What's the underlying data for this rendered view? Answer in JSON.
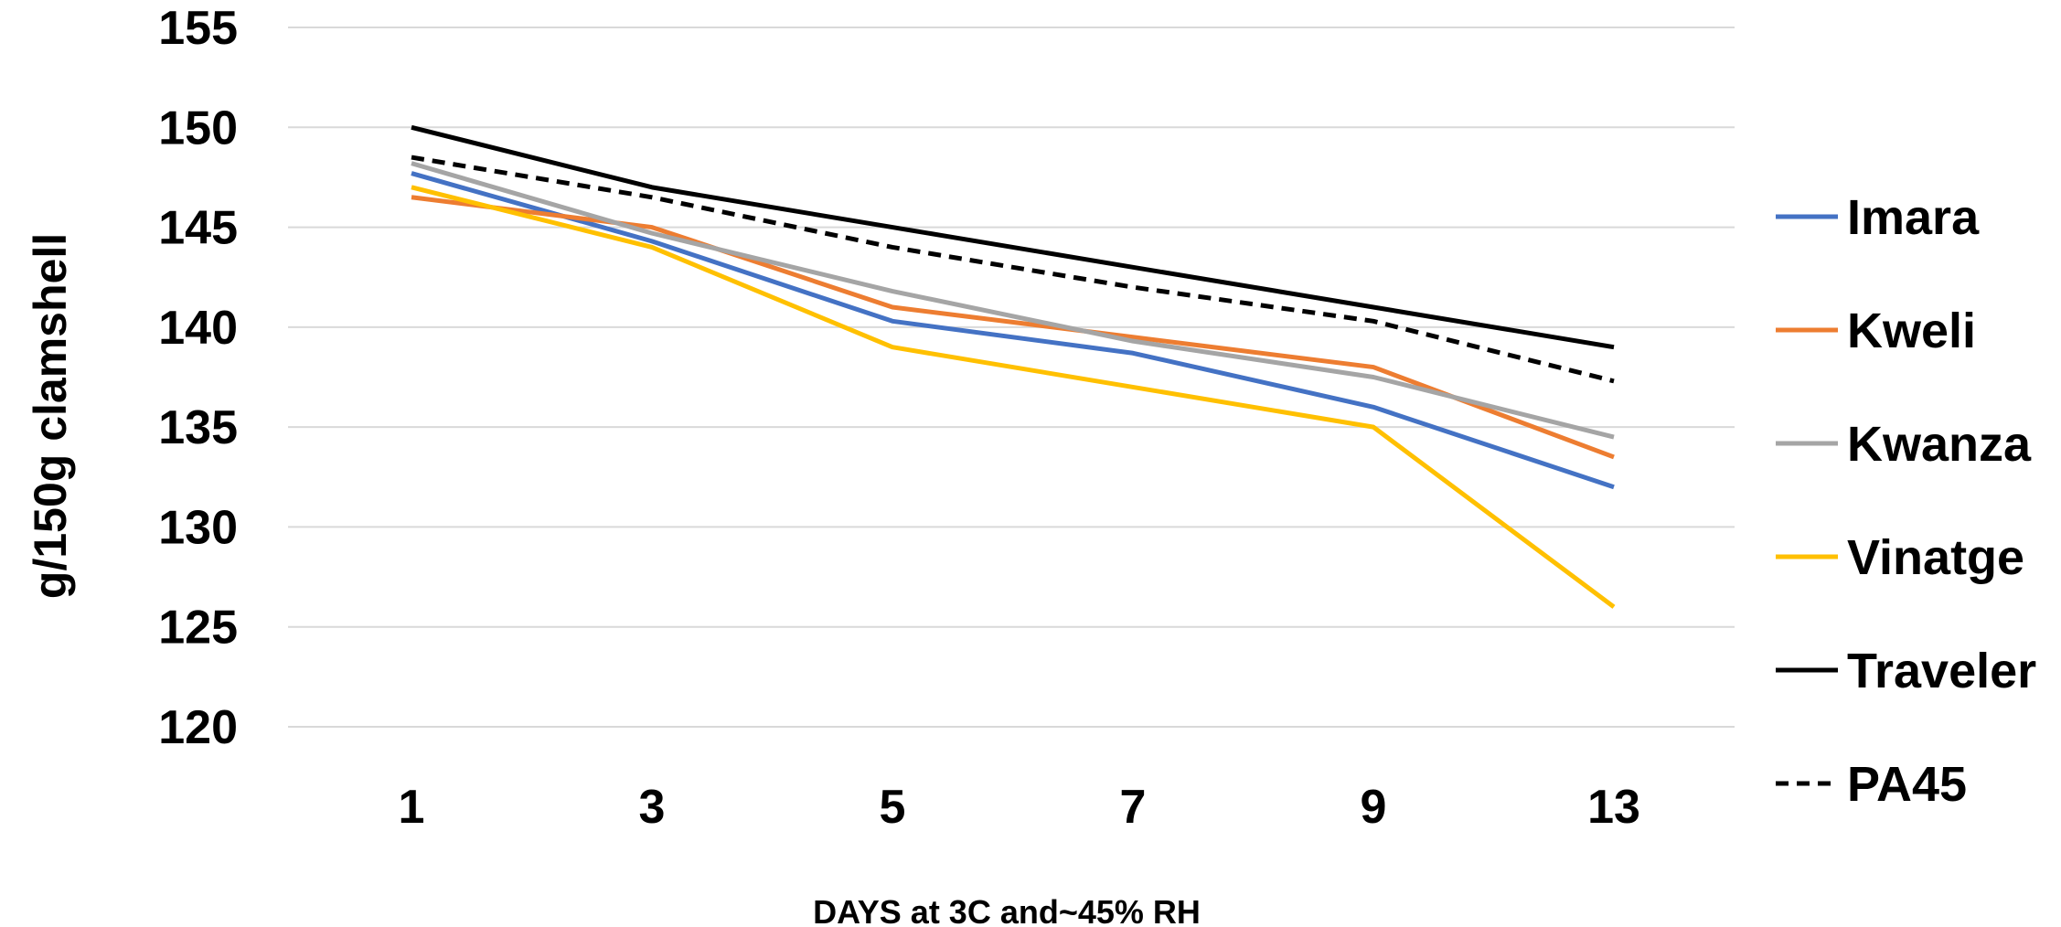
{
  "chart_data": {
    "type": "line",
    "title": "",
    "xlabel": "DAYS at 3C and~45% RH",
    "ylabel": "g/150g  clamshell",
    "categories": [
      "1",
      "3",
      "5",
      "7",
      "9",
      "13"
    ],
    "ylim": [
      120,
      155
    ],
    "yticks": [
      120,
      125,
      130,
      135,
      140,
      145,
      150,
      155
    ],
    "grid": true,
    "legend_position": "right",
    "series": [
      {
        "name": "Imara",
        "color": "#4472C4",
        "dash": "solid",
        "values": [
          147.7,
          144.3,
          140.3,
          138.7,
          136.0,
          132.0
        ]
      },
      {
        "name": "Kweli",
        "color": "#ED7D31",
        "dash": "solid",
        "values": [
          146.5,
          145.0,
          141.0,
          139.5,
          138.0,
          133.5
        ]
      },
      {
        "name": "Kwanza",
        "color": "#A5A5A5",
        "dash": "solid",
        "values": [
          148.2,
          144.7,
          141.8,
          139.3,
          137.5,
          134.5
        ]
      },
      {
        "name": "Vinatge",
        "color": "#FFC000",
        "dash": "solid",
        "values": [
          147.0,
          144.0,
          139.0,
          137.0,
          135.0,
          126.0
        ]
      },
      {
        "name": "Traveler",
        "color": "#000000",
        "dash": "solid",
        "values": [
          150.0,
          147.0,
          145.0,
          143.0,
          141.0,
          139.0
        ]
      },
      {
        "name": "PA45",
        "color": "#000000",
        "dash": "dashed",
        "values": [
          148.5,
          146.5,
          144.0,
          142.0,
          140.3,
          137.3
        ]
      }
    ]
  }
}
